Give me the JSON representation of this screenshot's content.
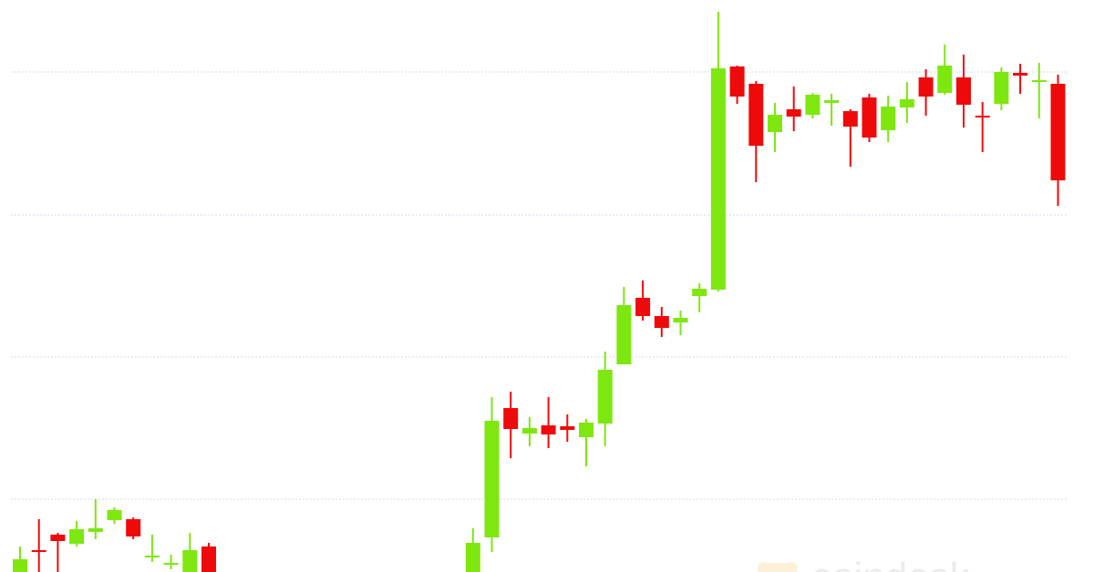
{
  "chart_data": {
    "type": "candlestick",
    "watermark": "coindesk",
    "open": [
      0,
      24,
      41,
      31,
      44,
      57,
      58,
      17,
      9,
      0,
      28,
      null,
      null,
      null,
      null,
      null,
      null,
      null,
      null,
      null,
      null,
      null,
      null,
      null,
      0,
      38,
      180,
      152,
      161,
      160,
      148,
      163,
      228,
      301,
      281,
      274,
      303,
      310,
      555,
      536,
      483,
      508,
      502,
      515,
      506,
      521,
      485,
      510,
      543,
      526,
      543,
      501,
      514,
      548,
      538,
      536
    ],
    "high": [
      28,
      58,
      43,
      56,
      80,
      71,
      60,
      41,
      19,
      43,
      32,
      null,
      null,
      null,
      null,
      null,
      null,
      null,
      null,
      null,
      null,
      null,
      null,
      null,
      48,
      192,
      198,
      170,
      192,
      173,
      168,
      242,
      313,
      320,
      291,
      287,
      317,
      615,
      556,
      539,
      515,
      533,
      526,
      525,
      508,
      525,
      523,
      538,
      552,
      579,
      568,
      516,
      554,
      558,
      559,
      546
    ],
    "low": [
      0,
      0,
      0,
      28,
      36,
      53,
      36,
      11,
      3,
      0,
      0,
      null,
      null,
      null,
      null,
      null,
      null,
      null,
      null,
      null,
      null,
      null,
      null,
      null,
      0,
      22,
      125,
      138,
      136,
      143,
      116,
      138,
      228,
      276,
      258,
      260,
      285,
      308,
      514,
      428,
      461,
      484,
      498,
      490,
      445,
      472,
      472,
      493,
      501,
      524,
      488,
      461,
      507,
      525,
      498,
      402
    ],
    "close": [
      14,
      22,
      34,
      47,
      48,
      68,
      39,
      18,
      10,
      24,
      0,
      null,
      null,
      null,
      null,
      null,
      null,
      null,
      null,
      null,
      null,
      null,
      null,
      null,
      32,
      166,
      157,
      158,
      151,
      156,
      164,
      222,
      293,
      281,
      268,
      279,
      311,
      553,
      522,
      468,
      502,
      500,
      524,
      518,
      489,
      477,
      511,
      519,
      522,
      556,
      513,
      499,
      549,
      545,
      540,
      430
    ],
    "up_color": "#7ee70f",
    "down_color": "#ee0a0a",
    "ylim": [
      0,
      628
    ],
    "yticks": [
      80,
      236,
      392,
      549
    ],
    "grid": true
  }
}
